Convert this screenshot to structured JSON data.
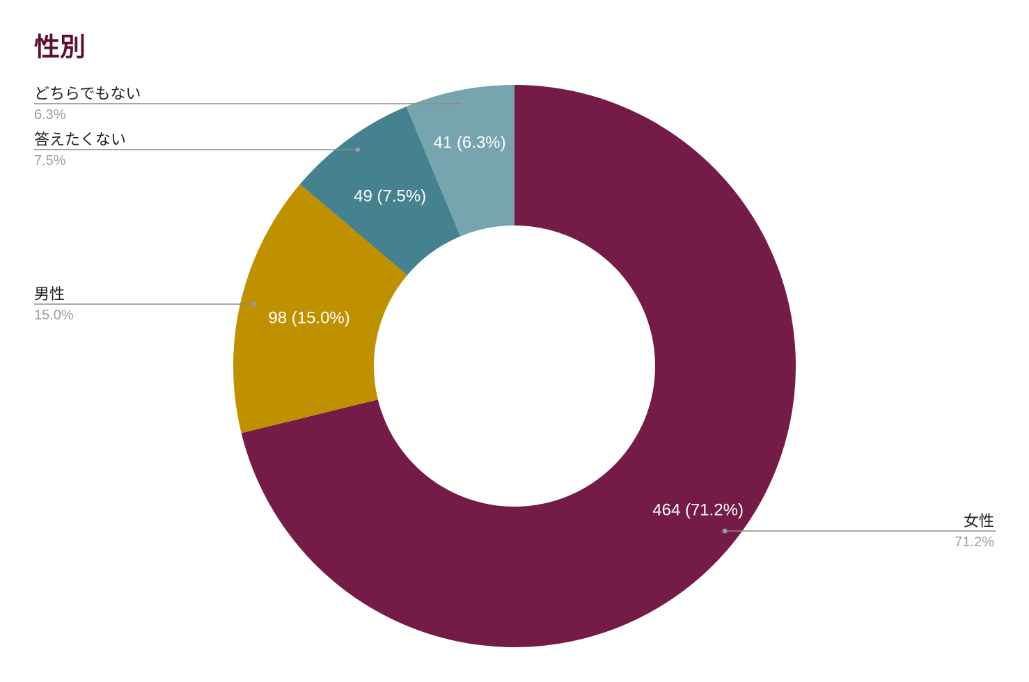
{
  "chart_data": {
    "type": "pie",
    "variant": "donut",
    "title": "性別",
    "title_color": "#5e1034",
    "categories": [
      "女性",
      "男性",
      "答えたくない",
      "どちらでもない"
    ],
    "values": [
      464,
      98,
      49,
      41
    ],
    "percent_labels": [
      "71.2%",
      "15.0%",
      "7.5%",
      "6.3%"
    ],
    "slice_labels": [
      "464 (71.2%)",
      "98 (15.0%)",
      "49 (7.5%)",
      "41 (6.3%)"
    ],
    "colors": [
      "#741b47",
      "#bf9000",
      "#45818e",
      "#76a5af"
    ],
    "start": "12 o'clock",
    "direction": "clockwise",
    "legend": "callouts"
  }
}
